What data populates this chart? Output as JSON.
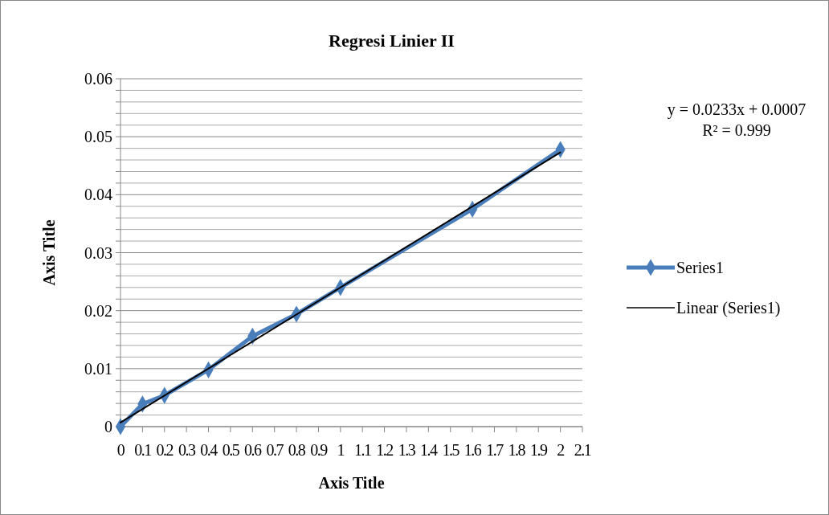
{
  "chart_data": {
    "type": "line",
    "title": "Regresi Linier II",
    "xlabel": "Axis Title",
    "ylabel": "Axis Title",
    "x": [
      0,
      0.1,
      0.2,
      0.4,
      0.6,
      0.8,
      1.0,
      1.6,
      2.0
    ],
    "series": [
      {
        "name": "Series1",
        "color": "#4a7ebb",
        "marker": "diamond",
        "values": [
          0,
          0.0039,
          0.0054,
          0.0098,
          0.0156,
          0.0194,
          0.024,
          0.0375,
          0.0478
        ]
      },
      {
        "name": "Linear (Series1)",
        "type": "line",
        "color": "#000000",
        "marker": "none",
        "x": [
          0,
          2.0
        ],
        "values": [
          0.0007,
          0.0473
        ]
      }
    ],
    "xlim": [
      0,
      2.1
    ],
    "xticks": [
      0,
      0.1,
      0.2,
      0.3,
      0.4,
      0.5,
      0.6,
      0.7,
      0.8,
      0.9,
      1,
      1.1,
      1.2,
      1.3,
      1.4,
      1.5,
      1.6,
      1.7,
      1.8,
      1.9,
      2,
      2.1
    ],
    "ylim": [
      0,
      0.06
    ],
    "yticks": [
      0,
      {
        "value": 0.002,
        "label": null
      },
      {
        "value": 0.004,
        "label": null
      },
      {
        "value": 0.006,
        "label": null
      },
      {
        "value": 0.008,
        "label": null
      },
      0.01,
      {
        "value": 0.012,
        "label": null
      },
      {
        "value": 0.014,
        "label": null
      },
      {
        "value": 0.016,
        "label": null
      },
      {
        "value": 0.018,
        "label": null
      },
      0.02,
      {
        "value": 0.022,
        "label": null
      },
      {
        "value": 0.024,
        "label": null
      },
      {
        "value": 0.026,
        "label": null
      },
      {
        "value": 0.028,
        "label": null
      },
      0.03,
      {
        "value": 0.032,
        "label": null
      },
      {
        "value": 0.034,
        "label": null
      },
      {
        "value": 0.036,
        "label": null
      },
      {
        "value": 0.038,
        "label": null
      },
      0.04,
      {
        "value": 0.042,
        "label": null
      },
      {
        "value": 0.044,
        "label": null
      },
      {
        "value": 0.046,
        "label": null
      },
      {
        "value": 0.048,
        "label": null
      },
      0.05,
      {
        "value": 0.052,
        "label": null
      },
      {
        "value": 0.054,
        "label": null
      },
      {
        "value": 0.056,
        "label": null
      },
      {
        "value": 0.058,
        "label": null
      },
      0.06
    ],
    "grid": "y",
    "legend": "right",
    "annotations": [
      "y = 0.0233x + 0.0007",
      "R² = 0.999"
    ]
  }
}
